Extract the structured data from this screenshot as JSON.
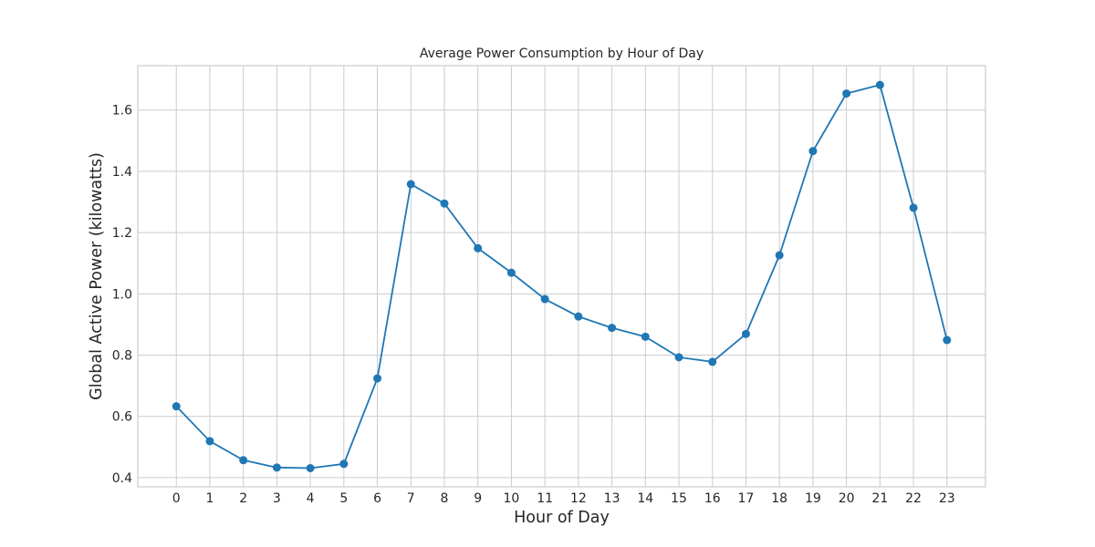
{
  "chart_data": {
    "type": "line",
    "title": "Average Power Consumption by Hour of Day",
    "xlabel": "Hour of Day",
    "ylabel": "Global Active Power (kilowatts)",
    "x": [
      0,
      1,
      2,
      3,
      4,
      5,
      6,
      7,
      8,
      9,
      10,
      11,
      12,
      13,
      14,
      15,
      16,
      17,
      18,
      19,
      20,
      21,
      22,
      23
    ],
    "xlim": [
      -1.15,
      24.15
    ],
    "ylim": [
      0.37,
      1.745
    ],
    "yticks": [
      0.4,
      0.6,
      0.8,
      1.0,
      1.2,
      1.4,
      1.6
    ],
    "ytick_labels": [
      "0.4",
      "0.6",
      "0.8",
      "1.0",
      "1.2",
      "1.4",
      "1.6"
    ],
    "xtick_labels": [
      "0",
      "1",
      "2",
      "3",
      "4",
      "5",
      "6",
      "7",
      "8",
      "9",
      "10",
      "11",
      "12",
      "13",
      "14",
      "15",
      "16",
      "17",
      "18",
      "19",
      "20",
      "21",
      "22",
      "23"
    ],
    "grid": true,
    "series": [
      {
        "values": [
          0.633,
          0.519,
          0.457,
          0.433,
          0.431,
          0.445,
          0.724,
          1.358,
          1.295,
          1.149,
          1.069,
          0.983,
          0.926,
          0.889,
          0.86,
          0.793,
          0.778,
          0.869,
          1.126,
          1.466,
          1.654,
          1.682,
          1.281,
          0.849
        ],
        "color": "#1f77b4",
        "marker": "circle"
      }
    ]
  }
}
